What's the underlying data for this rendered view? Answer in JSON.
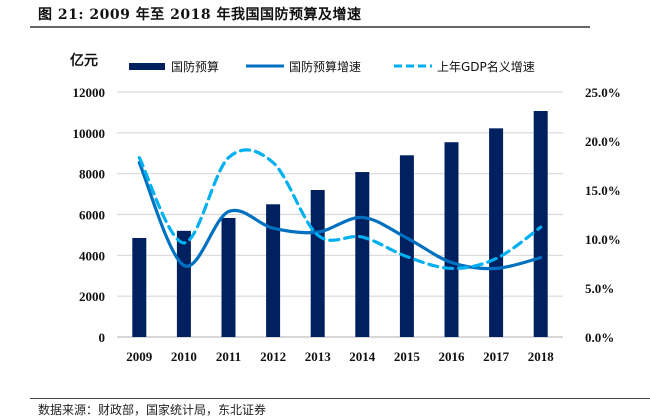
{
  "figure": {
    "title": "图  21:  2009 年至 2018 年我国国防预算及增速",
    "source": "数据来源：财政部，国家统计局，东北证券"
  },
  "chart_data": {
    "type": "bar",
    "title": "2009 年至 2018 年我国国防预算及增速",
    "categories": [
      "2009",
      "2010",
      "2011",
      "2012",
      "2013",
      "2014",
      "2015",
      "2016",
      "2017",
      "2018"
    ],
    "left_axis": {
      "label": "亿元",
      "range": [
        0,
        12000
      ],
      "ticks": [
        "0",
        "2000",
        "4000",
        "6000",
        "8000",
        "10000",
        "12000"
      ]
    },
    "right_axis": {
      "label": "",
      "range": [
        0,
        25
      ],
      "ticks": [
        "0.0%",
        "5.0%",
        "10.0%",
        "15.0%",
        "20.0%",
        "25.0%"
      ]
    },
    "grid": true,
    "legend_position": "top",
    "series": [
      {
        "name": "国防预算",
        "type": "bar",
        "axis": "left",
        "color": "#002060",
        "values": [
          4850,
          5200,
          5830,
          6500,
          7200,
          8080,
          8900,
          9540,
          10220,
          11070
        ]
      },
      {
        "name": "国防预算增速",
        "type": "line",
        "style": "solid",
        "smooth": true,
        "axis": "right",
        "unit": "%",
        "color": "#0070C0",
        "values": [
          17.8,
          7.3,
          12.8,
          11.1,
          10.7,
          12.2,
          10.1,
          7.6,
          7.0,
          8.1
        ]
      },
      {
        "name": "上年GDP名义增速",
        "type": "line",
        "style": "dashed",
        "smooth": true,
        "axis": "right",
        "unit": "%",
        "color": "#00B0F0",
        "values": [
          18.3,
          9.6,
          18.3,
          17.8,
          10.4,
          10.2,
          8.2,
          7.0,
          8.0,
          11.2
        ]
      }
    ]
  }
}
